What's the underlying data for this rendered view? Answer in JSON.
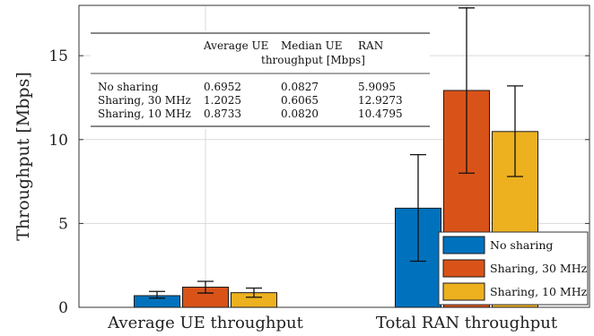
{
  "chart_data": {
    "type": "bar",
    "title": "",
    "xlabel": "",
    "ylabel": "Throughput [Mbps]",
    "ylim": [
      0,
      18
    ],
    "yticks": [
      0,
      5,
      10,
      15
    ],
    "grid": true,
    "legend_position": "bottom-right",
    "categories": [
      "Average UE throughput",
      "Total RAN throughput"
    ],
    "series": [
      {
        "name": "No sharing",
        "color": "#0072BD",
        "values": [
          0.6952,
          5.9095
        ],
        "err_low": [
          0.55,
          2.75
        ],
        "err_high": [
          0.95,
          9.1
        ]
      },
      {
        "name": "Sharing, 30 MHz",
        "color": "#D95319",
        "values": [
          1.2025,
          12.9273
        ],
        "err_low": [
          0.85,
          8.0
        ],
        "err_high": [
          1.55,
          17.85
        ]
      },
      {
        "name": "Sharing, 10 MHz",
        "color": "#EDB120",
        "values": [
          0.8733,
          10.4795
        ],
        "err_low": [
          0.6,
          7.8
        ],
        "err_high": [
          1.15,
          13.2
        ]
      }
    ],
    "table": {
      "headers": [
        "",
        "Average UE",
        "Median UE",
        "RAN"
      ],
      "subheader": "throughput [Mbps]",
      "rows": [
        [
          "No sharing",
          "0.6952",
          "0.0827",
          "5.9095"
        ],
        [
          "Sharing, 30 MHz",
          "1.2025",
          "0.6065",
          "12.9273"
        ],
        [
          "Sharing, 10 MHz",
          "0.8733",
          "0.0820",
          "10.4795"
        ]
      ]
    }
  }
}
